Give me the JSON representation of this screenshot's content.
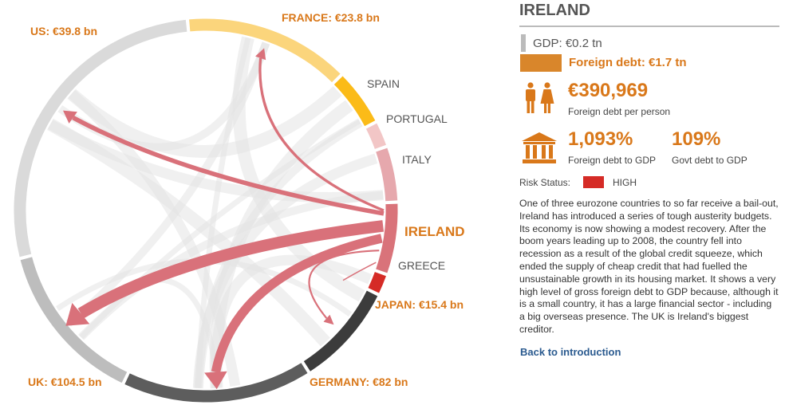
{
  "selected": {
    "name": "IRELAND",
    "label": "IRELAND",
    "gdp": "GDP: €0.2 tn",
    "foreign_debt": "Foreign debt: €1.7 tn",
    "debt_per_person": "€390,969",
    "debt_per_person_label": "Foreign debt per person",
    "foreign_debt_to_gdp": "1,093%",
    "foreign_debt_to_gdp_label": "Foreign debt to GDP",
    "govt_debt_to_gdp": "109%",
    "govt_debt_to_gdp_label": "Govt debt to GDP",
    "risk_label": "Risk Status:",
    "risk_value": "HIGH",
    "risk_color": "#d52b26",
    "description": "One of three eurozone countries to so far receive a bail-out, Ireland has introduced a series of tough austerity budgets. Its economy is now showing a modest recovery. After the boom years leading up to 2008, the country fell into recession as a result of the global credit squeeze, which ended the supply of cheap credit that had fuelled the unsustainable growth in its housing market. It shows a very high level of gross foreign debt to GDP because, although it is a small country, it has a large financial sector - including a big overseas presence. The UK is Ireland's biggest creditor.",
    "back_link": "Back to introduction"
  },
  "colors": {
    "accent": "#d9781a",
    "flow": "#d9717a",
    "ireland_segment": "#d9737a",
    "greece_segment": "#d52b26",
    "faint_flows": "#e3e3e3"
  },
  "segments": [
    {
      "id": "france",
      "label": "FRANCE: €23.8 bn",
      "color": "#fbd57c",
      "style": "creditor",
      "start": -5,
      "end": 44.5
    },
    {
      "id": "spain",
      "label": "SPAIN",
      "color": "#fbbb18",
      "style": "plain",
      "start": 45.5,
      "end": 62
    },
    {
      "id": "portugal",
      "label": "PORTUGAL",
      "color": "#f2c6c6",
      "style": "plain",
      "start": 63,
      "end": 70
    },
    {
      "id": "italy",
      "label": "ITALY",
      "color": "#e6a8ad",
      "style": "plain",
      "start": 71,
      "end": 87
    },
    {
      "id": "ireland",
      "label": "IRELAND",
      "color": "#d9737a",
      "style": "selected",
      "start": 88,
      "end": 109
    },
    {
      "id": "greece",
      "label": "GREECE",
      "color": "#d52b26",
      "style": "plain",
      "start": 110,
      "end": 115.5
    },
    {
      "id": "japan",
      "label": "JAPAN: €15.4 bn",
      "color": "#3c3c3c",
      "style": "creditor",
      "start": 116.5,
      "end": 147
    },
    {
      "id": "germany",
      "label": "GERMANY: €82 bn",
      "color": "#5d5d5d",
      "style": "creditor",
      "start": 148,
      "end": 205
    },
    {
      "id": "uk",
      "label": "UK: €104.5 bn",
      "color": "#bdbdbd",
      "style": "creditor",
      "start": 206,
      "end": 255
    },
    {
      "id": "us",
      "label": "US: €39.8 bn",
      "color": "#dadada",
      "style": "creditor",
      "start": 256,
      "end": 354
    }
  ],
  "flows": [
    {
      "to": "uk",
      "amount": 104.5
    },
    {
      "to": "germany",
      "amount": 82
    },
    {
      "to": "us",
      "amount": 39.8
    },
    {
      "to": "france",
      "amount": 23.8
    },
    {
      "to": "japan",
      "amount": 15.4
    }
  ]
}
